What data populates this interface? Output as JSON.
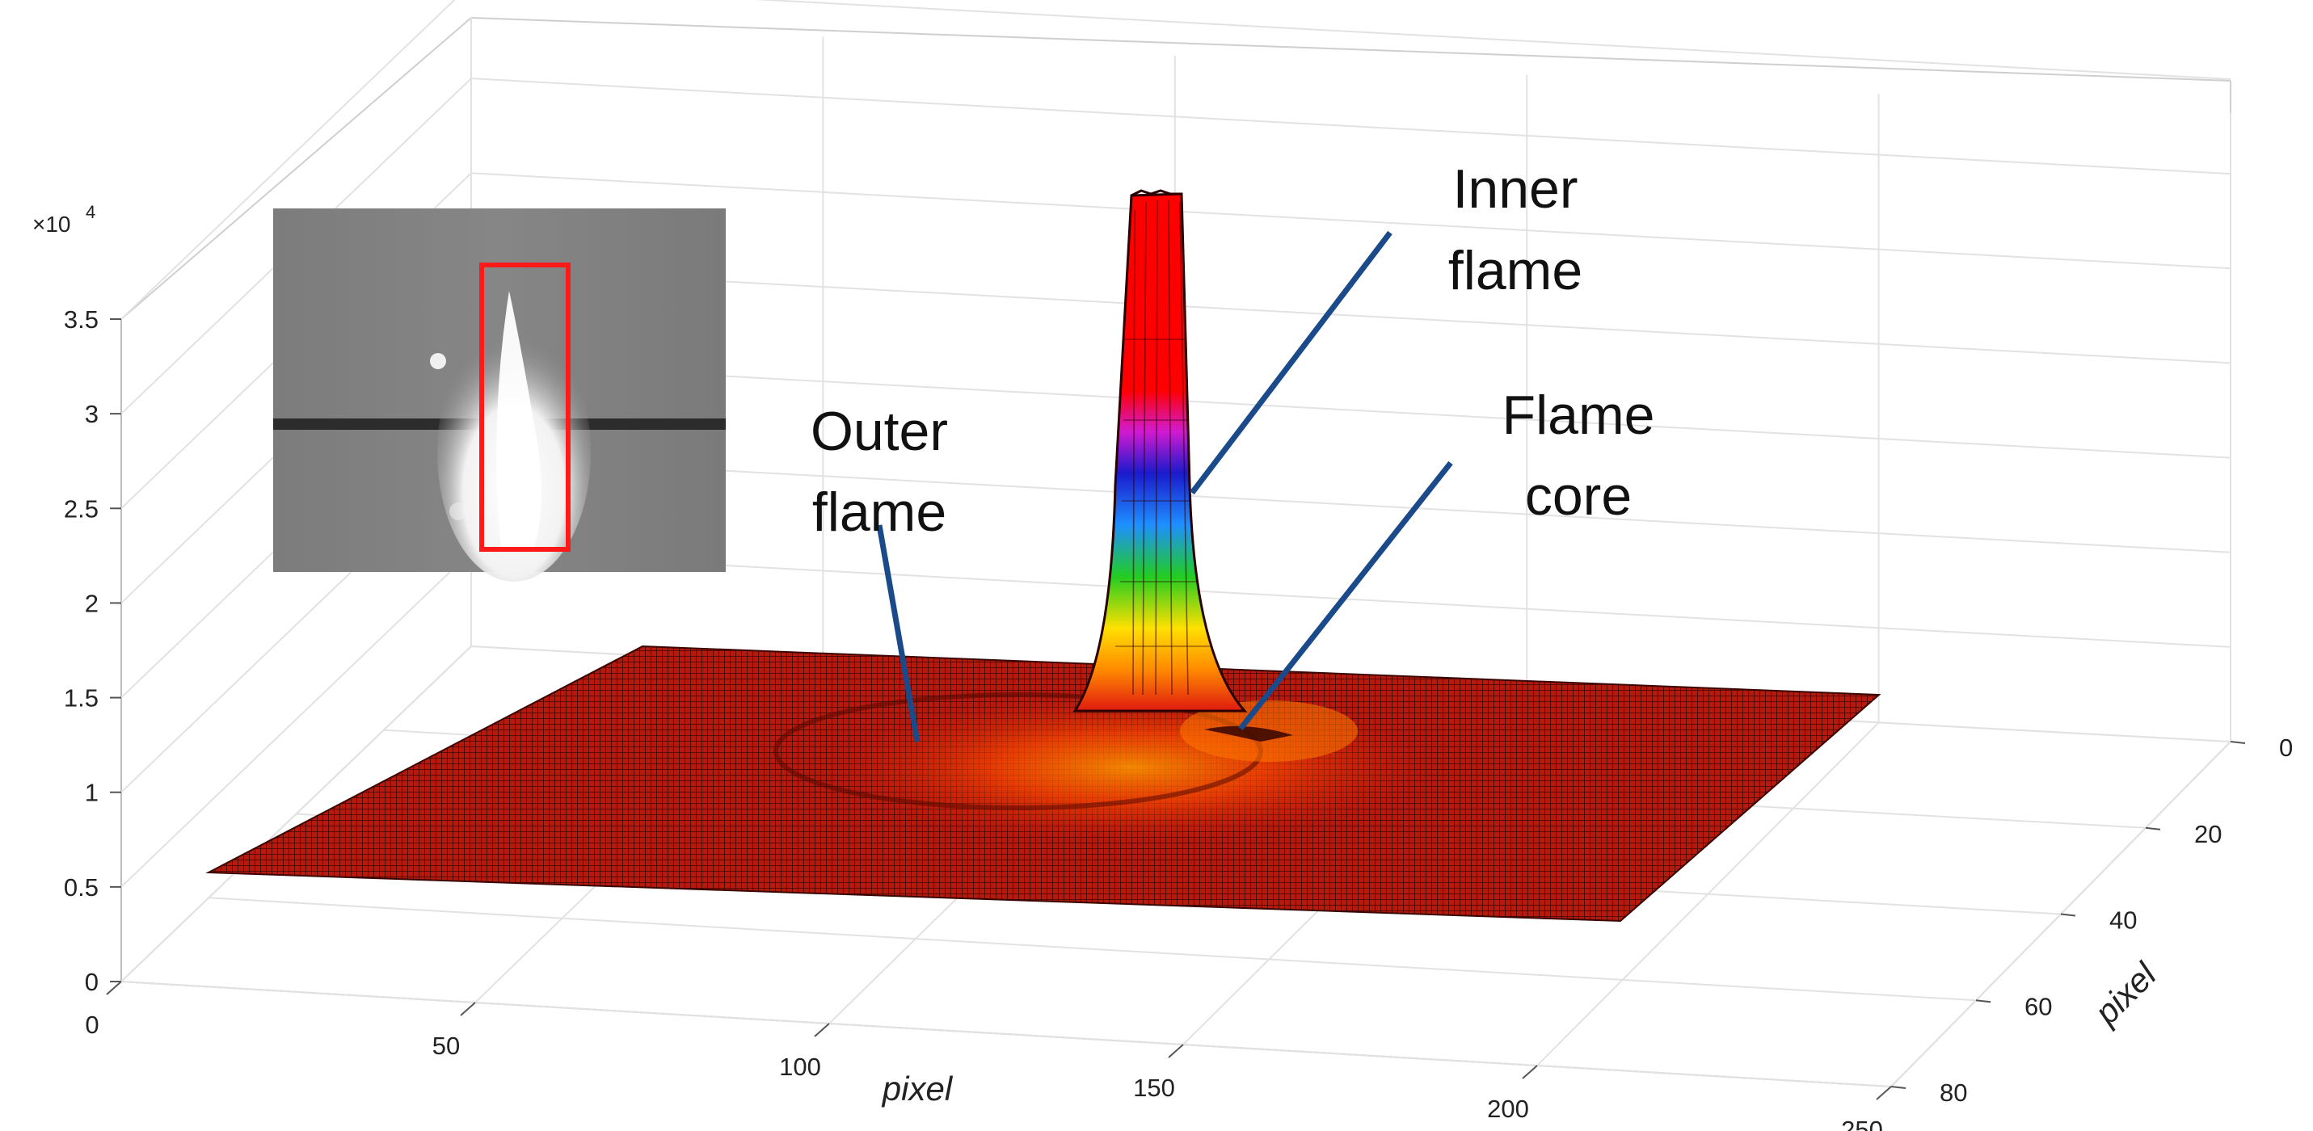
{
  "chart_data": {
    "type": "surface",
    "title": "",
    "xlabel": "pixel",
    "ylabel": "pixel",
    "zlabel": "",
    "xlim": [
      0,
      250
    ],
    "ylim": [
      0,
      80
    ],
    "zlim": [
      0,
      35000
    ],
    "x_ticks": [
      "0",
      "50",
      "100",
      "150",
      "200",
      "250"
    ],
    "y_ticks": [
      "0",
      "20",
      "40",
      "60",
      "80"
    ],
    "z_ticks": [
      "0",
      "0.5",
      "1",
      "1.5",
      "2",
      "2.5",
      "3",
      "3.5"
    ],
    "z_exponent": "×10",
    "z_exponent_power": "4",
    "grid": true,
    "colormap": [
      "#d81b14",
      "#ff8a00",
      "#ffe000",
      "#22cc22",
      "#1e8fff",
      "#1a1acc",
      "#d11ad1",
      "#ff0000"
    ],
    "surface_features": [
      {
        "name": "Inner flame peak",
        "x": 147,
        "y": 42,
        "z": 35000
      },
      {
        "name": "Outer flame ring",
        "x": 125,
        "y": 34,
        "z": 1500
      },
      {
        "name": "Flame core",
        "x": 162,
        "y": 48,
        "z": 2500
      }
    ],
    "annotations": [
      {
        "text": [
          "Inner",
          "flame"
        ]
      },
      {
        "text": [
          "Flame",
          "core"
        ]
      },
      {
        "text": [
          "Outer",
          "flame"
        ]
      }
    ],
    "inset": {
      "type": "grayscale-image",
      "highlight_box_color": "#ff1a1a"
    }
  }
}
